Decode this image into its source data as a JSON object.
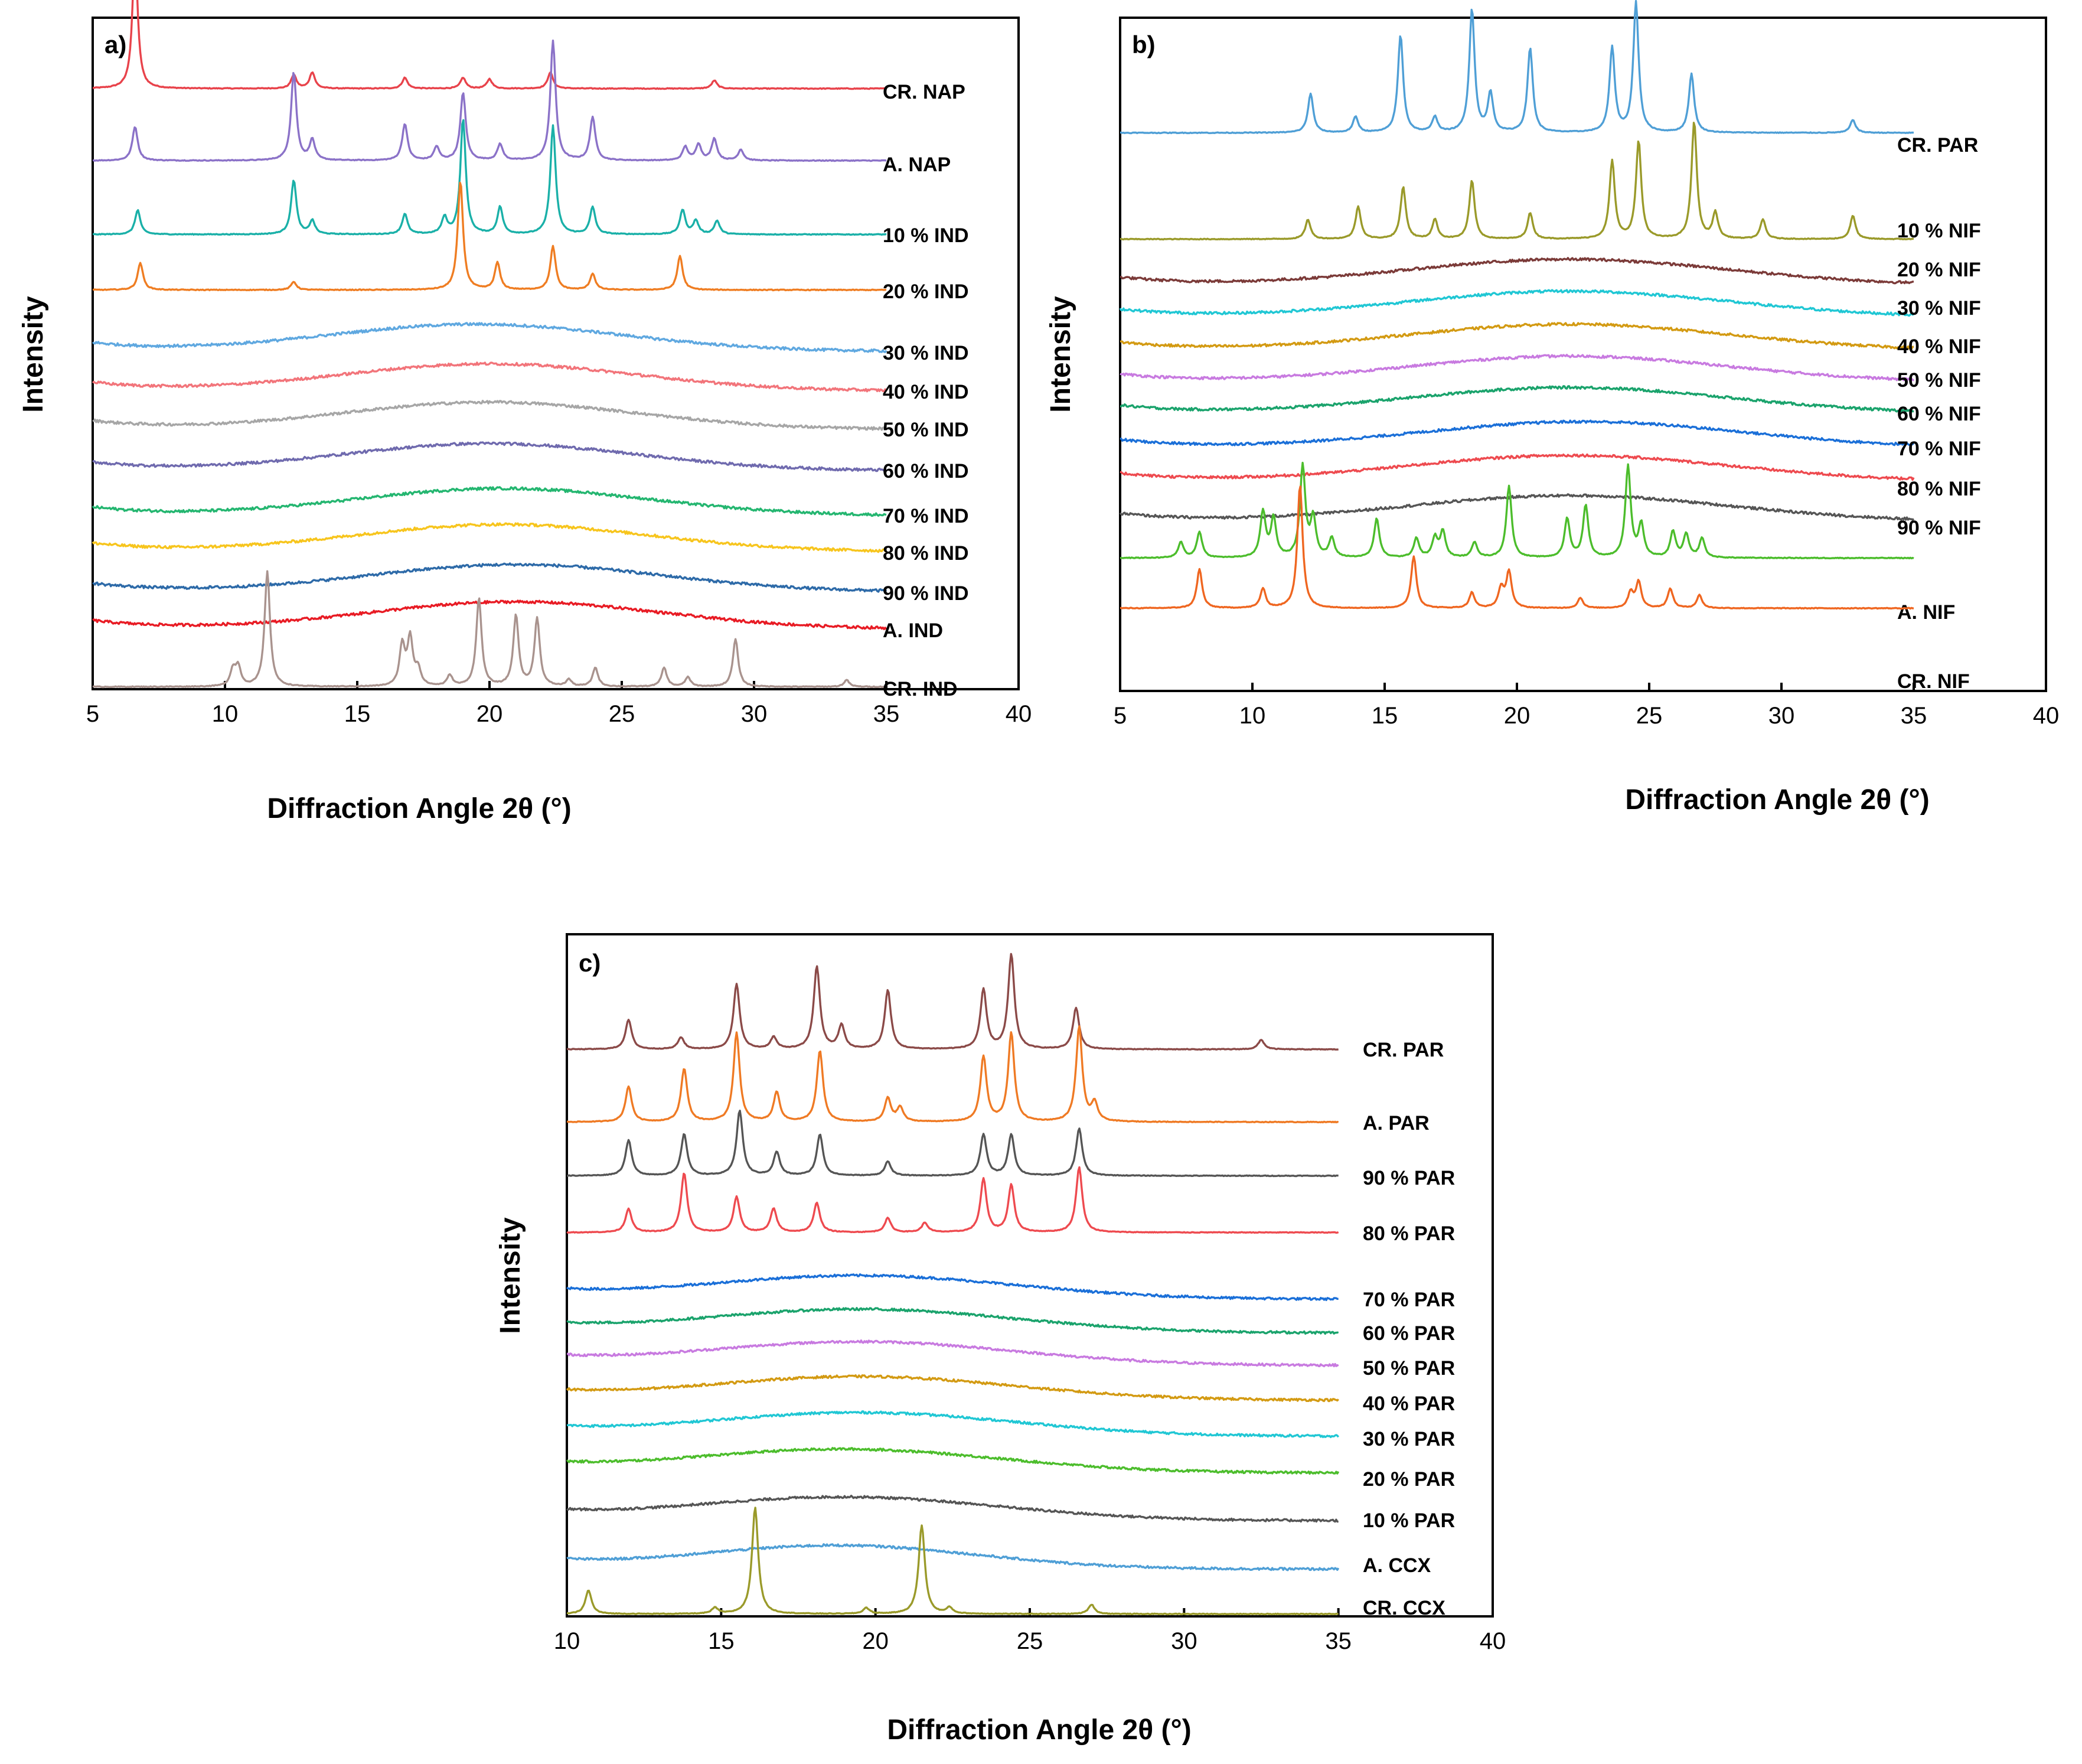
{
  "chart_data": [
    {
      "type": "line",
      "panel": "a)",
      "xlabel": "Diffraction Angle 2θ (°)",
      "ylabel": "Intensity",
      "xlim": [
        5,
        40
      ],
      "xticks": [
        "5",
        "10",
        "15",
        "20",
        "25",
        "30",
        "35",
        "40"
      ],
      "x_range_of_data": [
        5,
        35
      ],
      "series": [
        {
          "name": "CR. NAP",
          "color": "#e8434b",
          "kind": "crystalline",
          "peaks": [
            [
              6.6,
              1.0
            ],
            [
              12.6,
              0.1
            ],
            [
              13.3,
              0.12
            ],
            [
              16.8,
              0.08
            ],
            [
              19.0,
              0.08
            ],
            [
              20.0,
              0.07
            ],
            [
              22.3,
              0.12
            ],
            [
              28.5,
              0.06
            ]
          ]
        },
        {
          "name": "A. NAP",
          "color": "#8b72c8",
          "kind": "crystalline",
          "peaks": [
            [
              6.6,
              0.25
            ],
            [
              12.6,
              0.65
            ],
            [
              13.3,
              0.15
            ],
            [
              16.8,
              0.27
            ],
            [
              18.0,
              0.1
            ],
            [
              19.0,
              0.5
            ],
            [
              20.4,
              0.12
            ],
            [
              22.4,
              0.88
            ],
            [
              23.9,
              0.32
            ],
            [
              27.4,
              0.1
            ],
            [
              27.9,
              0.12
            ],
            [
              28.5,
              0.16
            ],
            [
              29.5,
              0.08
            ]
          ]
        },
        {
          "name": "10 % IND",
          "color": "#1ab0a8",
          "kind": "crystalline",
          "peaks": [
            [
              6.7,
              0.18
            ],
            [
              12.6,
              0.4
            ],
            [
              13.3,
              0.1
            ],
            [
              16.8,
              0.15
            ],
            [
              18.3,
              0.12
            ],
            [
              19.0,
              0.85
            ],
            [
              20.4,
              0.2
            ],
            [
              22.4,
              0.8
            ],
            [
              23.9,
              0.2
            ],
            [
              27.3,
              0.18
            ],
            [
              27.8,
              0.1
            ],
            [
              28.6,
              0.1
            ]
          ]
        },
        {
          "name": "20 % IND",
          "color": "#ef7d22",
          "kind": "crystalline",
          "peaks": [
            [
              6.8,
              0.2
            ],
            [
              12.6,
              0.06
            ],
            [
              18.9,
              0.8
            ],
            [
              20.3,
              0.2
            ],
            [
              22.4,
              0.32
            ],
            [
              23.9,
              0.12
            ],
            [
              27.2,
              0.25
            ]
          ]
        },
        {
          "name": "30 % IND",
          "color": "#5fa8e0",
          "kind": "amorphous",
          "halo": [
            19.5,
            5.5
          ]
        },
        {
          "name": "40 % IND",
          "color": "#f2747a",
          "kind": "amorphous",
          "halo": [
            20,
            5.5
          ]
        },
        {
          "name": "50 % IND",
          "color": "#a6a6a6",
          "kind": "amorphous",
          "halo": [
            20,
            5.5
          ]
        },
        {
          "name": "60 % IND",
          "color": "#6f6aae",
          "kind": "amorphous",
          "halo": [
            20,
            5.5
          ]
        },
        {
          "name": "70 % IND",
          "color": "#24b670",
          "kind": "amorphous",
          "halo": [
            20.5,
            5.5
          ]
        },
        {
          "name": "80 % IND",
          "color": "#f7c51d",
          "kind": "amorphous",
          "halo": [
            20.5,
            5.5
          ]
        },
        {
          "name": "90 % IND",
          "color": "#2d6aa8",
          "kind": "amorphous",
          "halo": [
            21,
            5.5
          ]
        },
        {
          "name": "A. IND",
          "color": "#e81b24",
          "kind": "amorphous",
          "halo": [
            21,
            5.5
          ]
        },
        {
          "name": "CR. IND",
          "color": "#a9938e",
          "kind": "crystalline",
          "peaks": [
            [
              10.3,
              0.12
            ],
            [
              10.5,
              0.14
            ],
            [
              11.6,
              0.85
            ],
            [
              16.7,
              0.3
            ],
            [
              17.0,
              0.35
            ],
            [
              17.3,
              0.12
            ],
            [
              18.5,
              0.08
            ],
            [
              19.6,
              0.65
            ],
            [
              21.0,
              0.52
            ],
            [
              21.8,
              0.5
            ],
            [
              23.0,
              0.05
            ],
            [
              24.0,
              0.14
            ],
            [
              26.6,
              0.14
            ],
            [
              27.5,
              0.07
            ],
            [
              29.3,
              0.35
            ],
            [
              33.5,
              0.05
            ]
          ]
        }
      ]
    },
    {
      "type": "line",
      "panel": "b)",
      "xlabel": "Diffraction Angle 2θ (°)",
      "ylabel": "Intensity",
      "xlim": [
        5,
        40
      ],
      "xticks": [
        "5",
        "10",
        "15",
        "20",
        "25",
        "30",
        "35",
        "40"
      ],
      "x_range_of_data": [
        5,
        35
      ],
      "series": [
        {
          "name": "CR. PAR",
          "color": "#4f9fd6",
          "kind": "crystalline",
          "peaks": [
            [
              12.2,
              0.3
            ],
            [
              13.9,
              0.12
            ],
            [
              15.6,
              0.75
            ],
            [
              16.9,
              0.12
            ],
            [
              18.3,
              0.95
            ],
            [
              19.0,
              0.3
            ],
            [
              20.5,
              0.65
            ],
            [
              23.6,
              0.65
            ],
            [
              24.5,
              1.0
            ],
            [
              26.6,
              0.45
            ],
            [
              32.7,
              0.1
            ]
          ]
        },
        {
          "name": "10 % NIF",
          "color": "#9a9a2a",
          "kind": "crystalline",
          "peaks": [
            [
              12.1,
              0.15
            ],
            [
              14.0,
              0.25
            ],
            [
              15.7,
              0.4
            ],
            [
              16.9,
              0.15
            ],
            [
              18.3,
              0.45
            ],
            [
              20.5,
              0.2
            ],
            [
              23.6,
              0.6
            ],
            [
              24.6,
              0.75
            ],
            [
              26.7,
              0.9
            ],
            [
              27.5,
              0.2
            ],
            [
              29.3,
              0.15
            ],
            [
              32.7,
              0.18
            ]
          ]
        },
        {
          "name": "20 % NIF",
          "color": "#7b3a38",
          "kind": "amorphous",
          "halo": [
            22,
            6
          ]
        },
        {
          "name": "30 % NIF",
          "color": "#20c7d4",
          "kind": "amorphous",
          "halo": [
            22,
            6
          ]
        },
        {
          "name": "40 % NIF",
          "color": "#d39a12",
          "kind": "amorphous",
          "halo": [
            22,
            6
          ]
        },
        {
          "name": "50 % NIF",
          "color": "#c87ae0",
          "kind": "amorphous",
          "halo": [
            22,
            6
          ]
        },
        {
          "name": "60 % NIF",
          "color": "#1aa36c",
          "kind": "amorphous",
          "halo": [
            22,
            6
          ]
        },
        {
          "name": "70 % NIF",
          "color": "#1a6fd8",
          "kind": "amorphous",
          "halo": [
            22.5,
            6
          ]
        },
        {
          "name": "80 % NIF",
          "color": "#ee4a4f",
          "kind": "amorphous",
          "halo": [
            22,
            6
          ]
        },
        {
          "name": "90 % NIF",
          "color": "#555555",
          "kind": "amorphous",
          "halo": [
            22,
            6
          ]
        },
        {
          "name": "A. NIF",
          "color": "#4cbd2c",
          "kind": "crystalline",
          "peaks": [
            [
              7.3,
              0.12
            ],
            [
              8.0,
              0.2
            ],
            [
              10.4,
              0.35
            ],
            [
              10.8,
              0.3
            ],
            [
              11.9,
              0.7
            ],
            [
              12.3,
              0.3
            ],
            [
              13.0,
              0.15
            ],
            [
              14.7,
              0.3
            ],
            [
              16.2,
              0.15
            ],
            [
              16.9,
              0.15
            ],
            [
              17.2,
              0.2
            ],
            [
              18.4,
              0.12
            ],
            [
              19.7,
              0.55
            ],
            [
              21.9,
              0.3
            ],
            [
              22.6,
              0.4
            ],
            [
              24.2,
              0.7
            ],
            [
              24.7,
              0.25
            ],
            [
              25.9,
              0.2
            ],
            [
              26.4,
              0.18
            ],
            [
              27.0,
              0.15
            ]
          ]
        },
        {
          "name": "CR. NIF",
          "color": "#ef6620",
          "kind": "crystalline",
          "peaks": [
            [
              8.0,
              0.3
            ],
            [
              10.4,
              0.15
            ],
            [
              11.8,
              0.95
            ],
            [
              16.1,
              0.4
            ],
            [
              18.3,
              0.12
            ],
            [
              19.4,
              0.15
            ],
            [
              19.7,
              0.28
            ],
            [
              22.4,
              0.08
            ],
            [
              24.3,
              0.12
            ],
            [
              24.6,
              0.2
            ],
            [
              25.8,
              0.15
            ],
            [
              26.9,
              0.1
            ]
          ]
        }
      ]
    },
    {
      "type": "line",
      "panel": "c)",
      "xlabel": "Diffraction Angle 2θ (°)",
      "ylabel": "Intensity",
      "xlim": [
        10,
        40
      ],
      "xticks": [
        "10",
        "15",
        "20",
        "25",
        "30",
        "35",
        "40"
      ],
      "x_range_of_data": [
        10,
        35
      ],
      "series": [
        {
          "name": "CR. PAR",
          "color": "#8b4a48",
          "kind": "crystalline",
          "peaks": [
            [
              12.0,
              0.25
            ],
            [
              13.7,
              0.1
            ],
            [
              15.5,
              0.55
            ],
            [
              16.7,
              0.1
            ],
            [
              18.1,
              0.7
            ],
            [
              18.9,
              0.2
            ],
            [
              20.4,
              0.5
            ],
            [
              23.5,
              0.5
            ],
            [
              24.4,
              0.8
            ],
            [
              26.5,
              0.35
            ],
            [
              32.5,
              0.08
            ]
          ]
        },
        {
          "name": "A. PAR",
          "color": "#ef7a24",
          "kind": "crystalline",
          "peaks": [
            [
              12.0,
              0.3
            ],
            [
              13.8,
              0.45
            ],
            [
              15.5,
              0.75
            ],
            [
              16.8,
              0.25
            ],
            [
              18.2,
              0.6
            ],
            [
              20.4,
              0.2
            ],
            [
              20.8,
              0.12
            ],
            [
              23.5,
              0.55
            ],
            [
              24.4,
              0.75
            ],
            [
              26.6,
              0.8
            ],
            [
              27.1,
              0.15
            ]
          ]
        },
        {
          "name": "90 % PAR",
          "color": "#555555",
          "kind": "crystalline",
          "peaks": [
            [
              12.0,
              0.3
            ],
            [
              13.8,
              0.35
            ],
            [
              15.6,
              0.55
            ],
            [
              16.8,
              0.2
            ],
            [
              18.2,
              0.35
            ],
            [
              20.4,
              0.12
            ],
            [
              23.5,
              0.35
            ],
            [
              24.4,
              0.35
            ],
            [
              26.6,
              0.4
            ]
          ]
        },
        {
          "name": "80 % PAR",
          "color": "#ee4a4f",
          "kind": "crystalline",
          "peaks": [
            [
              12.0,
              0.2
            ],
            [
              13.8,
              0.5
            ],
            [
              15.5,
              0.3
            ],
            [
              16.7,
              0.2
            ],
            [
              18.1,
              0.25
            ],
            [
              20.4,
              0.12
            ],
            [
              21.6,
              0.08
            ],
            [
              23.5,
              0.45
            ],
            [
              24.4,
              0.4
            ],
            [
              26.6,
              0.55
            ]
          ]
        },
        {
          "name": "70 % PAR",
          "color": "#1a6fd8",
          "kind": "amorphous",
          "halo": [
            19.5,
            5
          ]
        },
        {
          "name": "60 % PAR",
          "color": "#1aa36c",
          "kind": "amorphous",
          "halo": [
            19.5,
            5
          ]
        },
        {
          "name": "50 % PAR",
          "color": "#c87ae0",
          "kind": "amorphous",
          "halo": [
            19.5,
            5
          ]
        },
        {
          "name": "40 % PAR",
          "color": "#d39a12",
          "kind": "amorphous",
          "halo": [
            19.5,
            5
          ]
        },
        {
          "name": "30 % PAR",
          "color": "#20c7d4",
          "kind": "amorphous",
          "halo": [
            19.5,
            5
          ]
        },
        {
          "name": "20 % PAR",
          "color": "#4cbd2c",
          "kind": "amorphous",
          "halo": [
            19,
            5
          ]
        },
        {
          "name": "10 % PAR",
          "color": "#555555",
          "kind": "amorphous",
          "halo": [
            19,
            5
          ]
        },
        {
          "name": "A. CCX",
          "color": "#4f9fd6",
          "kind": "amorphous",
          "halo": [
            18.8,
            4.5
          ]
        },
        {
          "name": "CR. CCX",
          "color": "#9a9a2a",
          "kind": "crystalline",
          "peaks": [
            [
              10.7,
              0.2
            ],
            [
              14.8,
              0.05
            ],
            [
              16.1,
              0.9
            ],
            [
              19.7,
              0.05
            ],
            [
              21.5,
              0.75
            ],
            [
              22.4,
              0.05
            ],
            [
              27.0,
              0.08
            ]
          ]
        }
      ]
    }
  ]
}
